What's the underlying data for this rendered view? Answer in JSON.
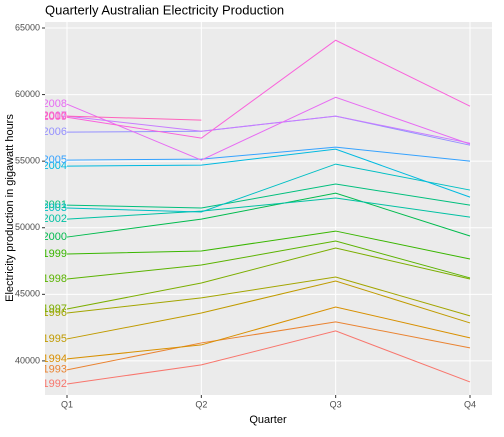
{
  "chart_data": {
    "type": "line",
    "title": "Quarterly Australian Electricity Production",
    "x_label": "Quarter",
    "y_label": "Electricity production in gigawatt hours",
    "categories": [
      "Q1",
      "Q2",
      "Q3",
      "Q4"
    ],
    "ylim": [
      37440,
      65450
    ],
    "yticks": [
      40000,
      45000,
      50000,
      55000,
      60000,
      65000
    ],
    "grid": true,
    "series": [
      {
        "name": "1992",
        "color": "#F8766D",
        "values": [
          38270,
          39700,
          42250,
          38420
        ]
      },
      {
        "name": "1993",
        "color": "#EA8331",
        "values": [
          39330,
          41350,
          42930,
          40980
        ]
      },
      {
        "name": "1994",
        "color": "#D89000",
        "values": [
          40150,
          41200,
          44050,
          41730
        ]
      },
      {
        "name": "1995",
        "color": "#C09B00",
        "values": [
          41650,
          43600,
          46000,
          42850
        ]
      },
      {
        "name": "1996",
        "color": "#A3A500",
        "values": [
          43600,
          44730,
          46300,
          43380
        ]
      },
      {
        "name": "1997",
        "color": "#7CAE00",
        "values": [
          43900,
          45850,
          48480,
          46150
        ]
      },
      {
        "name": "1998",
        "color": "#5BB300",
        "values": [
          46150,
          47200,
          49000,
          46230
        ]
      },
      {
        "name": "1999",
        "color": "#39B600",
        "values": [
          48030,
          48250,
          49750,
          47650
        ]
      },
      {
        "name": "2000",
        "color": "#00BB4E",
        "values": [
          49300,
          50650,
          52600,
          49380
        ]
      },
      {
        "name": "2001",
        "color": "#00BF7D",
        "values": [
          51700,
          51480,
          53280,
          51700
        ]
      },
      {
        "name": "2002",
        "color": "#00C1A3",
        "values": [
          50650,
          51250,
          52230,
          50800
        ]
      },
      {
        "name": "2003",
        "color": "#00BFC4",
        "values": [
          51480,
          51180,
          54780,
          52830
        ]
      },
      {
        "name": "2004",
        "color": "#00BAE0",
        "values": [
          54630,
          54700,
          55900,
          52300
        ]
      },
      {
        "name": "2005",
        "color": "#35A2FF",
        "values": [
          55080,
          55150,
          56050,
          55000
        ]
      },
      {
        "name": "2006",
        "color": "#9590FF",
        "values": [
          57180,
          57250,
          58380,
          56200
        ]
      },
      {
        "name": "2007",
        "color": "#C77CFF",
        "values": [
          58380,
          57250,
          58380,
          56350
        ]
      },
      {
        "name": "2008",
        "color": "#E76BF3",
        "values": [
          59280,
          55080,
          59800,
          56280
        ]
      },
      {
        "name": "2009",
        "color": "#FA62DB",
        "values": [
          58300,
          56730,
          64080,
          59130
        ]
      },
      {
        "name": "2010",
        "color": "#FF62BC",
        "values": [
          58380,
          58080,
          null,
          null
        ]
      }
    ]
  }
}
